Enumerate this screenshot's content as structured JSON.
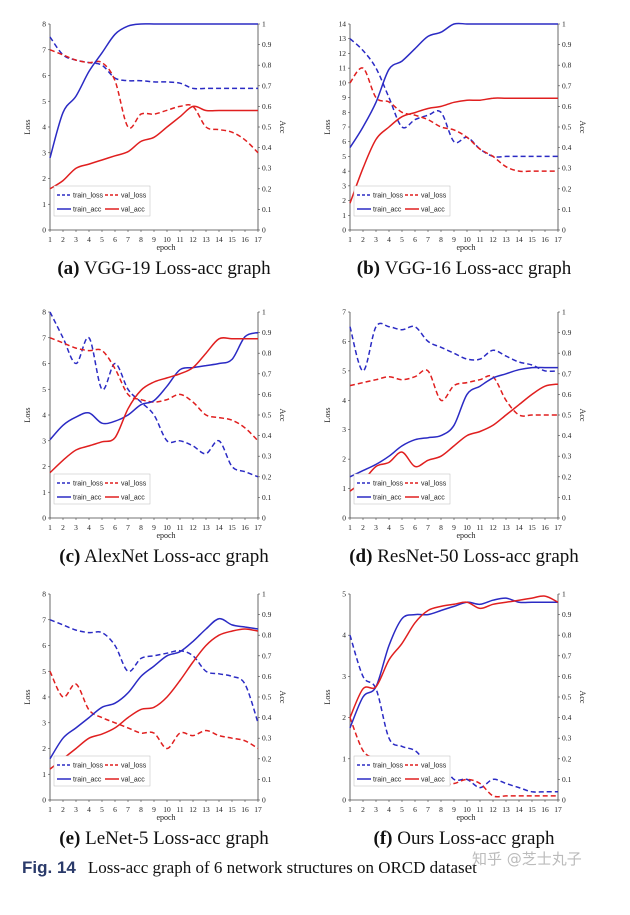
{
  "figure_caption": {
    "label": "Fig. 14",
    "text": "Loss-acc graph of 6 network structures on ORCD dataset"
  },
  "watermark": "知乎 @芝士丸子",
  "colors": {
    "train": "#2b2bc4",
    "val": "#e01f1f"
  },
  "chart_data": [
    {
      "type": "line",
      "caption_label": "(a)",
      "caption_text": "VGG-19 Loss-acc graph",
      "x": [
        1,
        2,
        3,
        4,
        5,
        6,
        7,
        8,
        9,
        10,
        11,
        12,
        13,
        14,
        15,
        16,
        17
      ],
      "xlabel": "epoch",
      "ylabel_left": "Loss",
      "ylabel_right": "Acc",
      "ylim_left": [
        0,
        8
      ],
      "ylim_right": [
        0,
        1
      ],
      "yticks_left": [
        0,
        1,
        2,
        3,
        4,
        5,
        6,
        7,
        8
      ],
      "yticks_right": [
        0,
        0.1,
        0.2,
        0.3,
        0.4,
        0.5,
        0.6,
        0.7,
        0.8,
        0.9,
        1
      ],
      "legend_position": "bottom-left",
      "series": [
        {
          "name": "train_loss",
          "axis": "left",
          "style": "dashed",
          "color": "#2b2bc4",
          "values": [
            7.5,
            6.8,
            6.6,
            6.5,
            6.4,
            5.9,
            5.8,
            5.8,
            5.75,
            5.75,
            5.7,
            5.5,
            5.5,
            5.5,
            5.5,
            5.5,
            5.5
          ]
        },
        {
          "name": "val_loss",
          "axis": "left",
          "style": "dashed",
          "color": "#e01f1f",
          "values": [
            7.0,
            6.8,
            6.6,
            6.5,
            6.5,
            5.8,
            4.0,
            4.5,
            4.5,
            4.65,
            4.8,
            4.8,
            4.0,
            3.9,
            3.8,
            3.5,
            3.0
          ]
        },
        {
          "name": "train_acc",
          "axis": "right",
          "style": "solid",
          "color": "#2b2bc4",
          "values": [
            0.35,
            0.57,
            0.65,
            0.77,
            0.86,
            0.95,
            0.99,
            1.0,
            1.0,
            1.0,
            1.0,
            1.0,
            1.0,
            1.0,
            1.0,
            1.0,
            1.0
          ]
        },
        {
          "name": "val_acc",
          "axis": "right",
          "style": "solid",
          "color": "#e01f1f",
          "values": [
            0.2,
            0.24,
            0.3,
            0.32,
            0.34,
            0.36,
            0.38,
            0.43,
            0.45,
            0.5,
            0.55,
            0.6,
            0.58,
            0.58,
            0.58,
            0.58,
            0.58
          ]
        }
      ]
    },
    {
      "type": "line",
      "caption_label": "(b)",
      "caption_text": "VGG-16 Loss-acc graph",
      "x": [
        1,
        2,
        3,
        4,
        5,
        6,
        7,
        8,
        9,
        10,
        11,
        12,
        13,
        14,
        15,
        16,
        17
      ],
      "xlabel": "epoch",
      "ylabel_left": "Loss",
      "ylabel_right": "Acc",
      "ylim_left": [
        0,
        14
      ],
      "ylim_right": [
        0,
        1
      ],
      "yticks_left": [
        0,
        1,
        2,
        3,
        4,
        5,
        6,
        7,
        8,
        9,
        10,
        11,
        12,
        13,
        14
      ],
      "yticks_right": [
        0,
        0.1,
        0.2,
        0.3,
        0.4,
        0.5,
        0.6,
        0.7,
        0.8,
        0.9,
        1
      ],
      "legend_position": "bottom-left",
      "series": [
        {
          "name": "train_loss",
          "axis": "left",
          "style": "dashed",
          "color": "#2b2bc4",
          "values": [
            13.0,
            12.2,
            11.0,
            9.0,
            7.0,
            7.5,
            7.8,
            8.0,
            6.0,
            6.3,
            5.5,
            5.0,
            5.0,
            5.0,
            5.0,
            5.0,
            5.0
          ]
        },
        {
          "name": "val_loss",
          "axis": "left",
          "style": "dashed",
          "color": "#e01f1f",
          "values": [
            10.0,
            11.0,
            9.0,
            8.7,
            8.0,
            7.8,
            7.5,
            7.0,
            6.8,
            6.3,
            5.5,
            5.0,
            4.3,
            4.0,
            4.0,
            4.0,
            4.0
          ]
        },
        {
          "name": "train_acc",
          "axis": "right",
          "style": "solid",
          "color": "#2b2bc4",
          "values": [
            0.4,
            0.5,
            0.62,
            0.78,
            0.82,
            0.88,
            0.94,
            0.96,
            1.0,
            1.0,
            1.0,
            1.0,
            1.0,
            1.0,
            1.0,
            1.0,
            1.0
          ]
        },
        {
          "name": "val_acc",
          "axis": "right",
          "style": "solid",
          "color": "#e01f1f",
          "values": [
            0.13,
            0.3,
            0.44,
            0.5,
            0.55,
            0.57,
            0.59,
            0.6,
            0.62,
            0.63,
            0.63,
            0.64,
            0.64,
            0.64,
            0.64,
            0.64,
            0.64
          ]
        }
      ]
    },
    {
      "type": "line",
      "caption_label": "(c)",
      "caption_text": "AlexNet Loss-acc graph",
      "x": [
        1,
        2,
        3,
        4,
        5,
        6,
        7,
        8,
        9,
        10,
        11,
        12,
        13,
        14,
        15,
        16,
        17
      ],
      "xlabel": "epoch",
      "ylabel_left": "Loss",
      "ylabel_right": "Acc",
      "ylim_left": [
        0,
        8
      ],
      "ylim_right": [
        0,
        1
      ],
      "yticks_left": [
        0,
        1,
        2,
        3,
        4,
        5,
        6,
        7,
        8
      ],
      "yticks_right": [
        0,
        0.1,
        0.2,
        0.3,
        0.4,
        0.5,
        0.6,
        0.7,
        0.8,
        0.9,
        1
      ],
      "legend_position": "bottom-left",
      "series": [
        {
          "name": "train_loss",
          "axis": "left",
          "style": "dashed",
          "color": "#2b2bc4",
          "values": [
            8.0,
            7.0,
            6.0,
            7.0,
            5.0,
            6.0,
            5.0,
            4.5,
            4.0,
            3.0,
            3.0,
            2.8,
            2.5,
            3.0,
            2.0,
            1.8,
            1.6
          ]
        },
        {
          "name": "val_loss",
          "axis": "left",
          "style": "dashed",
          "color": "#e01f1f",
          "values": [
            7.0,
            6.8,
            6.6,
            6.5,
            6.5,
            5.8,
            4.8,
            4.6,
            4.5,
            4.6,
            4.8,
            4.5,
            4.0,
            3.9,
            3.8,
            3.5,
            3.0
          ]
        },
        {
          "name": "train_acc",
          "axis": "right",
          "style": "solid",
          "color": "#2b2bc4",
          "values": [
            0.38,
            0.45,
            0.49,
            0.51,
            0.46,
            0.47,
            0.5,
            0.55,
            0.57,
            0.64,
            0.72,
            0.73,
            0.74,
            0.75,
            0.77,
            0.88,
            0.9
          ]
        },
        {
          "name": "val_acc",
          "axis": "right",
          "style": "solid",
          "color": "#e01f1f",
          "values": [
            0.22,
            0.28,
            0.33,
            0.35,
            0.37,
            0.39,
            0.53,
            0.62,
            0.66,
            0.68,
            0.7,
            0.73,
            0.8,
            0.87,
            0.87,
            0.87,
            0.87
          ]
        }
      ]
    },
    {
      "type": "line",
      "caption_label": "(d)",
      "caption_text": "ResNet-50 Loss-acc graph",
      "x": [
        1,
        2,
        3,
        4,
        5,
        6,
        7,
        8,
        9,
        10,
        11,
        12,
        13,
        14,
        15,
        16,
        17
      ],
      "xlabel": "epoch",
      "ylabel_left": "Loss",
      "ylabel_right": "Acc",
      "ylim_left": [
        0,
        7
      ],
      "ylim_right": [
        0,
        1
      ],
      "yticks_left": [
        0,
        1,
        2,
        3,
        4,
        5,
        6,
        7
      ],
      "yticks_right": [
        0,
        0.1,
        0.2,
        0.3,
        0.4,
        0.5,
        0.6,
        0.7,
        0.8,
        0.9,
        1
      ],
      "legend_position": "bottom-left",
      "series": [
        {
          "name": "train_loss",
          "axis": "left",
          "style": "dashed",
          "color": "#2b2bc4",
          "values": [
            6.5,
            5.0,
            6.5,
            6.5,
            6.4,
            6.5,
            6.0,
            5.8,
            5.6,
            5.4,
            5.4,
            5.7,
            5.5,
            5.3,
            5.2,
            5.0,
            5.0
          ]
        },
        {
          "name": "val_loss",
          "axis": "left",
          "style": "dashed",
          "color": "#e01f1f",
          "values": [
            4.5,
            4.6,
            4.7,
            4.8,
            4.7,
            4.8,
            5.0,
            4.0,
            4.5,
            4.6,
            4.7,
            4.8,
            4.0,
            3.5,
            3.5,
            3.5,
            3.5
          ]
        },
        {
          "name": "train_acc",
          "axis": "right",
          "style": "solid",
          "color": "#2b2bc4",
          "values": [
            0.2,
            0.23,
            0.26,
            0.3,
            0.35,
            0.38,
            0.39,
            0.4,
            0.45,
            0.6,
            0.64,
            0.68,
            0.7,
            0.72,
            0.73,
            0.73,
            0.73
          ]
        },
        {
          "name": "val_acc",
          "axis": "right",
          "style": "solid",
          "color": "#e01f1f",
          "values": [
            0.13,
            0.18,
            0.25,
            0.27,
            0.32,
            0.25,
            0.28,
            0.3,
            0.35,
            0.4,
            0.42,
            0.45,
            0.5,
            0.55,
            0.6,
            0.64,
            0.65
          ]
        }
      ]
    },
    {
      "type": "line",
      "caption_label": "(e)",
      "caption_text": "LeNet-5 Loss-acc graph",
      "x": [
        1,
        2,
        3,
        4,
        5,
        6,
        7,
        8,
        9,
        10,
        11,
        12,
        13,
        14,
        15,
        16,
        17
      ],
      "xlabel": "epoch",
      "ylabel_left": "Loss",
      "ylabel_right": "Acc",
      "ylim_left": [
        0,
        8
      ],
      "ylim_right": [
        0,
        1
      ],
      "yticks_left": [
        0,
        1,
        2,
        3,
        4,
        5,
        6,
        7,
        8
      ],
      "yticks_right": [
        0,
        0.1,
        0.2,
        0.3,
        0.4,
        0.5,
        0.6,
        0.7,
        0.8,
        0.9,
        1
      ],
      "legend_position": "bottom-left",
      "series": [
        {
          "name": "train_loss",
          "axis": "left",
          "style": "dashed",
          "color": "#2b2bc4",
          "values": [
            7.0,
            6.8,
            6.6,
            6.5,
            6.5,
            6.0,
            5.0,
            5.5,
            5.6,
            5.7,
            5.8,
            5.6,
            5.0,
            4.9,
            4.8,
            4.5,
            3.0
          ]
        },
        {
          "name": "val_loss",
          "axis": "left",
          "style": "dashed",
          "color": "#e01f1f",
          "values": [
            5.0,
            4.0,
            4.5,
            3.5,
            3.2,
            3.0,
            2.8,
            2.6,
            2.6,
            2.0,
            2.6,
            2.5,
            2.7,
            2.5,
            2.4,
            2.3,
            2.0
          ]
        },
        {
          "name": "train_acc",
          "axis": "right",
          "style": "solid",
          "color": "#2b2bc4",
          "values": [
            0.2,
            0.3,
            0.35,
            0.4,
            0.45,
            0.47,
            0.52,
            0.6,
            0.65,
            0.7,
            0.72,
            0.77,
            0.83,
            0.88,
            0.85,
            0.84,
            0.83
          ]
        },
        {
          "name": "val_acc",
          "axis": "right",
          "style": "solid",
          "color": "#e01f1f",
          "values": [
            0.15,
            0.2,
            0.25,
            0.3,
            0.32,
            0.35,
            0.4,
            0.44,
            0.45,
            0.5,
            0.58,
            0.67,
            0.75,
            0.8,
            0.82,
            0.83,
            0.82
          ]
        }
      ]
    },
    {
      "type": "line",
      "caption_label": "(f)",
      "caption_text": "Ours Loss-acc graph",
      "x": [
        1,
        2,
        3,
        4,
        5,
        6,
        7,
        8,
        9,
        10,
        11,
        12,
        13,
        14,
        15,
        16,
        17
      ],
      "xlabel": "epoch",
      "ylabel_left": "Loss",
      "ylabel_right": "Acc",
      "ylim_left": [
        0,
        5
      ],
      "ylim_right": [
        0,
        1
      ],
      "yticks_left": [
        0,
        1,
        2,
        3,
        4,
        5
      ],
      "yticks_right": [
        0,
        0.1,
        0.2,
        0.3,
        0.4,
        0.5,
        0.6,
        0.7,
        0.8,
        0.9,
        1
      ],
      "legend_position": "bottom-left",
      "series": [
        {
          "name": "train_loss",
          "axis": "left",
          "style": "dashed",
          "color": "#2b2bc4",
          "values": [
            4.0,
            3.0,
            2.7,
            1.5,
            1.3,
            1.2,
            0.9,
            0.9,
            0.5,
            0.5,
            0.3,
            0.5,
            0.4,
            0.3,
            0.2,
            0.2,
            0.2
          ]
        },
        {
          "name": "val_loss",
          "axis": "left",
          "style": "dashed",
          "color": "#e01f1f",
          "values": [
            2.0,
            1.2,
            1.0,
            0.9,
            0.8,
            0.8,
            0.7,
            0.4,
            0.4,
            0.5,
            0.4,
            0.1,
            0.1,
            0.1,
            0.1,
            0.1,
            0.1
          ]
        },
        {
          "name": "train_acc",
          "axis": "right",
          "style": "solid",
          "color": "#2b2bc4",
          "values": [
            0.35,
            0.5,
            0.55,
            0.75,
            0.88,
            0.9,
            0.9,
            0.92,
            0.94,
            0.96,
            0.95,
            0.97,
            0.98,
            0.96,
            0.96,
            0.96,
            0.96
          ]
        },
        {
          "name": "val_acc",
          "axis": "right",
          "style": "solid",
          "color": "#e01f1f",
          "values": [
            0.4,
            0.54,
            0.55,
            0.68,
            0.76,
            0.86,
            0.92,
            0.94,
            0.95,
            0.96,
            0.93,
            0.95,
            0.96,
            0.97,
            0.98,
            0.99,
            0.96
          ]
        }
      ]
    }
  ]
}
